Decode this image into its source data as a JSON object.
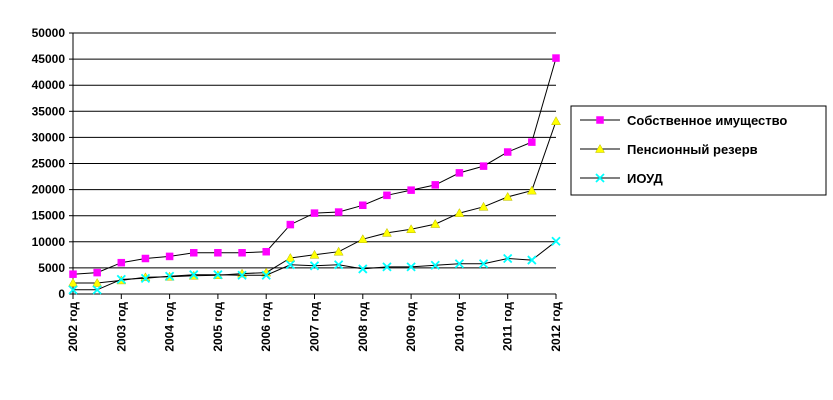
{
  "chart_data": {
    "type": "line",
    "title": "",
    "xlabel": "",
    "ylabel": "",
    "ylim": [
      0,
      50000
    ],
    "yticks": [
      0,
      5000,
      10000,
      15000,
      20000,
      25000,
      30000,
      35000,
      40000,
      45000,
      50000
    ],
    "grid": true,
    "legend_position": "right",
    "categories": [
      "2002 год",
      "2003 год",
      "2004 год",
      "2005 год",
      "2006 год",
      "2007 год",
      "2008 год",
      "2009 год",
      "2010 год",
      "2011 год",
      "2012 год"
    ],
    "x": [
      0,
      0.5,
      1,
      1.5,
      2,
      2.5,
      3,
      3.5,
      4,
      4.5,
      5,
      5.5,
      6,
      6.5,
      7,
      7.5,
      8,
      8.5,
      9,
      9.5,
      10
    ],
    "series": [
      {
        "name": "Собственное имущество",
        "color": "#ff00ff",
        "marker": "square",
        "values": [
          3800,
          4100,
          6000,
          6800,
          7200,
          7900,
          7900,
          7900,
          8100,
          13300,
          15500,
          15700,
          17000,
          18900,
          19900,
          20900,
          23200,
          24500,
          27200,
          29100,
          45200
        ]
      },
      {
        "name": "Пенсионный резерв",
        "color": "#ffff00",
        "marker": "triangle",
        "values": [
          2100,
          2100,
          2600,
          3200,
          3300,
          3500,
          3600,
          3900,
          4100,
          6900,
          7500,
          8100,
          10500,
          11700,
          12400,
          13400,
          15500,
          16700,
          18600,
          19800,
          33100
        ]
      },
      {
        "name": "ИОУД",
        "color": "#00ffff",
        "marker": "x",
        "values": [
          800,
          800,
          2800,
          3000,
          3400,
          3700,
          3700,
          3600,
          3600,
          5600,
          5400,
          5600,
          4800,
          5200,
          5200,
          5500,
          5800,
          5800,
          6800,
          6500,
          10100
        ]
      }
    ]
  }
}
